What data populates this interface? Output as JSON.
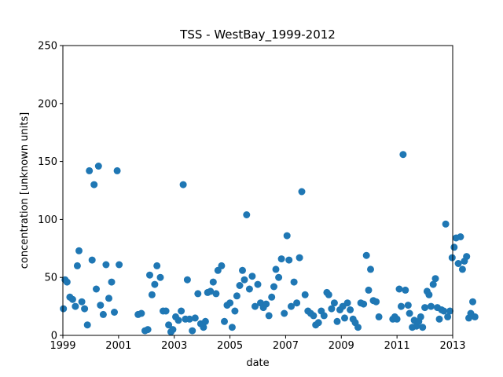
{
  "chart_data": {
    "type": "scatter",
    "title": "TSS - WestBay_1999-2012",
    "xlabel": "date",
    "ylabel": "concentration [unknown units]",
    "xlim": [
      1999,
      2013
    ],
    "ylim": [
      0,
      250
    ],
    "x_ticks": [
      1999,
      2001,
      2003,
      2005,
      2007,
      2009,
      2011,
      2013
    ],
    "x_tick_labels": [
      "1999",
      "2001",
      "2003",
      "2005",
      "2007",
      "2009",
      "2011",
      "2013"
    ],
    "y_ticks": [
      0,
      50,
      100,
      150,
      200,
      250
    ],
    "y_tick_labels": [
      "0",
      "50",
      "100",
      "150",
      "200",
      "250"
    ],
    "grid": false,
    "marker_color": "#1f77b4",
    "series": [
      {
        "points": [
          [
            1999.02,
            23
          ],
          [
            1999.08,
            48
          ],
          [
            1999.15,
            46
          ],
          [
            1999.25,
            33
          ],
          [
            1999.35,
            31
          ],
          [
            1999.45,
            25
          ],
          [
            1999.52,
            60
          ],
          [
            1999.58,
            73
          ],
          [
            1999.68,
            29
          ],
          [
            1999.78,
            23
          ],
          [
            1999.88,
            9
          ],
          [
            1999.95,
            142
          ],
          [
            2000.05,
            65
          ],
          [
            2000.12,
            130
          ],
          [
            2000.2,
            40
          ],
          [
            2000.28,
            146
          ],
          [
            2000.35,
            26
          ],
          [
            2000.45,
            18
          ],
          [
            2000.55,
            61
          ],
          [
            2000.65,
            32
          ],
          [
            2000.75,
            46
          ],
          [
            2000.85,
            20
          ],
          [
            2000.95,
            142
          ],
          [
            2001.02,
            61
          ],
          [
            2001.7,
            18
          ],
          [
            2001.82,
            19
          ],
          [
            2001.95,
            4
          ],
          [
            2002.05,
            5
          ],
          [
            2002.12,
            52
          ],
          [
            2002.2,
            35
          ],
          [
            2002.3,
            44
          ],
          [
            2002.38,
            60
          ],
          [
            2002.5,
            50
          ],
          [
            2002.6,
            21
          ],
          [
            2002.7,
            21
          ],
          [
            2002.8,
            9
          ],
          [
            2002.88,
            3
          ],
          [
            2002.95,
            5
          ],
          [
            2003.05,
            16
          ],
          [
            2003.15,
            13
          ],
          [
            2003.25,
            21
          ],
          [
            2003.32,
            130
          ],
          [
            2003.4,
            14
          ],
          [
            2003.47,
            48
          ],
          [
            2003.55,
            14
          ],
          [
            2003.65,
            4
          ],
          [
            2003.75,
            15
          ],
          [
            2003.85,
            36
          ],
          [
            2003.95,
            10
          ],
          [
            2004.05,
            7
          ],
          [
            2004.12,
            12
          ],
          [
            2004.2,
            37
          ],
          [
            2004.3,
            38
          ],
          [
            2004.4,
            46
          ],
          [
            2004.5,
            36
          ],
          [
            2004.57,
            56
          ],
          [
            2004.7,
            60
          ],
          [
            2004.8,
            12
          ],
          [
            2004.9,
            26
          ],
          [
            2005.0,
            28
          ],
          [
            2005.08,
            7
          ],
          [
            2005.18,
            21
          ],
          [
            2005.25,
            34
          ],
          [
            2005.35,
            43
          ],
          [
            2005.45,
            56
          ],
          [
            2005.52,
            48
          ],
          [
            2005.6,
            104
          ],
          [
            2005.7,
            40
          ],
          [
            2005.8,
            51
          ],
          [
            2005.9,
            25
          ],
          [
            2006.0,
            44
          ],
          [
            2006.1,
            28
          ],
          [
            2006.2,
            24
          ],
          [
            2006.3,
            27
          ],
          [
            2006.4,
            17
          ],
          [
            2006.5,
            33
          ],
          [
            2006.58,
            42
          ],
          [
            2006.65,
            57
          ],
          [
            2006.75,
            50
          ],
          [
            2006.85,
            66
          ],
          [
            2006.95,
            19
          ],
          [
            2007.05,
            86
          ],
          [
            2007.12,
            65
          ],
          [
            2007.2,
            25
          ],
          [
            2007.3,
            46
          ],
          [
            2007.4,
            28
          ],
          [
            2007.5,
            67
          ],
          [
            2007.58,
            124
          ],
          [
            2007.7,
            35
          ],
          [
            2007.8,
            21
          ],
          [
            2007.9,
            19
          ],
          [
            2008.0,
            17
          ],
          [
            2008.08,
            9
          ],
          [
            2008.18,
            11
          ],
          [
            2008.28,
            21
          ],
          [
            2008.38,
            17
          ],
          [
            2008.48,
            37
          ],
          [
            2008.55,
            35
          ],
          [
            2008.65,
            23
          ],
          [
            2008.75,
            28
          ],
          [
            2008.85,
            12
          ],
          [
            2008.95,
            22
          ],
          [
            2009.05,
            25
          ],
          [
            2009.12,
            15
          ],
          [
            2009.22,
            28
          ],
          [
            2009.32,
            22
          ],
          [
            2009.42,
            14
          ],
          [
            2009.5,
            11
          ],
          [
            2009.6,
            7
          ],
          [
            2009.7,
            28
          ],
          [
            2009.8,
            27
          ],
          [
            2009.9,
            69
          ],
          [
            2009.98,
            39
          ],
          [
            2010.05,
            57
          ],
          [
            2010.15,
            30
          ],
          [
            2010.25,
            29
          ],
          [
            2010.35,
            16
          ],
          [
            2010.85,
            14
          ],
          [
            2010.92,
            16
          ],
          [
            2011.0,
            14
          ],
          [
            2011.08,
            40
          ],
          [
            2011.15,
            25
          ],
          [
            2011.22,
            156
          ],
          [
            2011.3,
            39
          ],
          [
            2011.4,
            26
          ],
          [
            2011.45,
            19
          ],
          [
            2011.55,
            7
          ],
          [
            2011.62,
            13
          ],
          [
            2011.7,
            8
          ],
          [
            2011.78,
            12
          ],
          [
            2011.85,
            16
          ],
          [
            2011.92,
            7
          ],
          [
            2012.0,
            24
          ],
          [
            2012.08,
            38
          ],
          [
            2012.15,
            35
          ],
          [
            2012.22,
            25
          ],
          [
            2012.3,
            44
          ],
          [
            2012.38,
            49
          ],
          [
            2012.45,
            24
          ],
          [
            2012.52,
            14
          ],
          [
            2012.6,
            22
          ],
          [
            2012.68,
            21
          ],
          [
            2012.75,
            96
          ],
          [
            2012.82,
            16
          ],
          [
            2012.9,
            21
          ],
          [
            2012.98,
            67
          ],
          [
            2013.05,
            76
          ],
          [
            2013.12,
            84
          ],
          [
            2013.2,
            62
          ],
          [
            2013.28,
            85
          ],
          [
            2013.35,
            57
          ],
          [
            2013.42,
            64
          ],
          [
            2013.5,
            68
          ],
          [
            2013.58,
            15
          ],
          [
            2013.65,
            19
          ],
          [
            2013.72,
            29
          ],
          [
            2013.8,
            16
          ]
        ]
      }
    ]
  }
}
